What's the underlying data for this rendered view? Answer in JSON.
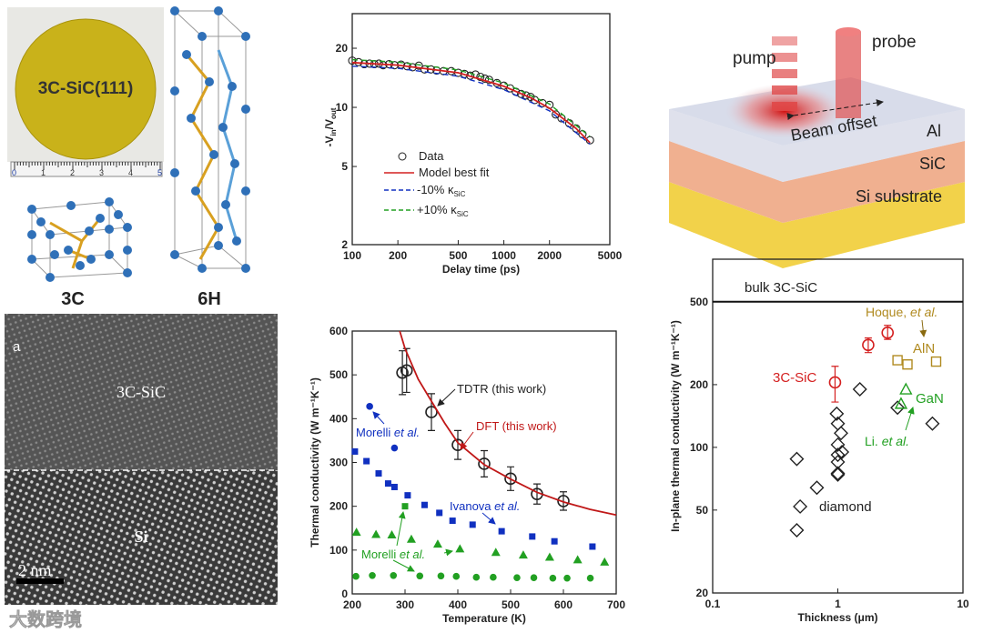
{
  "panel_a": {
    "wafer_label": "3C-SiC(111)",
    "ruler_ticks": [
      "0",
      "1",
      "2",
      "3",
      "4",
      "5"
    ],
    "structure_3c_label": "3C",
    "structure_6h_label": "6H"
  },
  "panel_tem": {
    "panel_letter": "a",
    "top_layer_label": "3C-SiC",
    "bottom_layer_label": "Si",
    "scale_bar_label": "2 nm"
  },
  "schematic": {
    "pump_label": "pump",
    "probe_label": "probe",
    "beam_offset_label": "Beam offset",
    "layers": [
      "Al",
      "SiC",
      "Si substrate"
    ]
  },
  "watermark": "大数跨境",
  "colors": {
    "red": "#d42020",
    "blue": "#1030c0",
    "green": "#22a022",
    "gold": "#b08a20",
    "black": "#222222"
  },
  "chart_data": [
    {
      "type": "scatter",
      "title": "",
      "xlabel": "Delay time (ps)",
      "ylabel_parts": [
        "-V",
        "in",
        "/V",
        "out"
      ],
      "xscale": "log",
      "yscale": "log",
      "xlim": [
        100,
        5000
      ],
      "ylim": [
        2,
        30
      ],
      "xticks": [
        "100",
        "200",
        "500",
        "1000",
        "2000",
        "5000"
      ],
      "yticks": [
        "2",
        "5",
        "10",
        "20"
      ],
      "legend": {
        "placement": "lower-left",
        "entries": [
          "Data",
          "Model best fit",
          "-10% κ",
          "+10% κ"
        ],
        "subscript": "SiC"
      },
      "series": [
        {
          "name": "Data",
          "style": "open-circle",
          "color": "#222222",
          "points": [
            [
              100,
              17.3
            ],
            [
              110,
              17
            ],
            [
              120,
              16.6
            ],
            [
              130,
              16.7
            ],
            [
              140,
              16.6
            ],
            [
              150,
              16.7
            ],
            [
              160,
              16.4
            ],
            [
              175,
              16.6
            ],
            [
              190,
              16.4
            ],
            [
              210,
              16.5
            ],
            [
              230,
              16.2
            ],
            [
              250,
              16
            ],
            [
              275,
              16.3
            ],
            [
              300,
              15.6
            ],
            [
              330,
              15.6
            ],
            [
              360,
              15.4
            ],
            [
              400,
              15.3
            ],
            [
              450,
              15.3
            ],
            [
              500,
              15
            ],
            [
              550,
              14.8
            ],
            [
              600,
              14.5
            ],
            [
              650,
              14.7
            ],
            [
              700,
              14.3
            ],
            [
              750,
              14
            ],
            [
              800,
              13.8
            ],
            [
              900,
              13.3
            ],
            [
              1000,
              12.9
            ],
            [
              1100,
              12.5
            ],
            [
              1200,
              12
            ],
            [
              1300,
              11.7
            ],
            [
              1400,
              11.5
            ],
            [
              1500,
              11.3
            ],
            [
              1600,
              10.9
            ],
            [
              1800,
              10.5
            ],
            [
              2000,
              10.3
            ],
            [
              2200,
              9.2
            ],
            [
              2400,
              8.8
            ],
            [
              2700,
              8.3
            ],
            [
              3000,
              7.8
            ],
            [
              3300,
              7.3
            ],
            [
              3700,
              6.8
            ]
          ]
        },
        {
          "name": "Model best fit",
          "style": "solid",
          "color": "#d42020",
          "points": [
            [
              100,
              16.9
            ],
            [
              200,
              16.4
            ],
            [
              500,
              15
            ],
            [
              1000,
              12.8
            ],
            [
              1500,
              11.2
            ],
            [
              2000,
              9.9
            ],
            [
              3000,
              7.8
            ],
            [
              3700,
              6.6
            ]
          ]
        },
        {
          "name": "-10% κSiC",
          "style": "dashed",
          "color": "#1030c0",
          "points": [
            [
              100,
              16.2
            ],
            [
              200,
              15.8
            ],
            [
              500,
              14.4
            ],
            [
              1000,
              12.3
            ],
            [
              2000,
              9.6
            ],
            [
              3700,
              6.5
            ]
          ]
        },
        {
          "name": "+10% κSiC",
          "style": "dashed",
          "color": "#22a022",
          "points": [
            [
              100,
              17.5
            ],
            [
              200,
              17
            ],
            [
              500,
              15.5
            ],
            [
              1000,
              13.3
            ],
            [
              2000,
              10.4
            ],
            [
              3700,
              7.1
            ]
          ]
        }
      ]
    },
    {
      "type": "scatter",
      "title": "",
      "xlabel": "Temperature (K)",
      "ylabel": "Thermal conductivity (W m⁻¹K⁻¹)",
      "xlim": [
        200,
        700
      ],
      "ylim": [
        0,
        600
      ],
      "xticks": [
        "200",
        "300",
        "400",
        "500",
        "600",
        "700"
      ],
      "yticks": [
        "0",
        "100",
        "200",
        "300",
        "400",
        "500",
        "600"
      ],
      "annotations": [
        "TDTR (this work)",
        "DFT (this work)",
        "Morelli ",
        "et al.",
        "Ivanova ",
        "et al.",
        "Morelli ",
        "et al."
      ],
      "series": [
        {
          "name": "TDTR (this work)",
          "style": "open-circle-errorbar",
          "color": "#222222",
          "points": [
            [
              295,
              505,
              50
            ],
            [
              303,
              510,
              50
            ],
            [
              350,
              415,
              42
            ],
            [
              400,
              340,
              33
            ],
            [
              450,
              297,
              30
            ],
            [
              500,
              263,
              27
            ],
            [
              550,
              228,
              23
            ],
            [
              600,
              212,
              21
            ]
          ]
        },
        {
          "name": "DFT (this work)",
          "style": "solid",
          "color": "#c01818",
          "points": [
            [
              290,
              600
            ],
            [
              300,
              560
            ],
            [
              325,
              490
            ],
            [
              350,
              440
            ],
            [
              375,
              390
            ],
            [
              400,
              345
            ],
            [
              450,
              295
            ],
            [
              500,
              262
            ],
            [
              550,
              232
            ],
            [
              600,
              210
            ],
            [
              650,
              193
            ],
            [
              700,
              180
            ]
          ]
        },
        {
          "name": "Morelli et al. (blue)",
          "style": "filled-circle",
          "color": "#1030c0",
          "points": [
            [
              233,
              428
            ],
            [
              280,
              333
            ]
          ]
        },
        {
          "name": "Ivanova et al.",
          "style": "filled-square",
          "color": "#1030c0",
          "points": [
            [
              205,
              325
            ],
            [
              227,
              303
            ],
            [
              250,
              275
            ],
            [
              268,
              252
            ],
            [
              280,
              244
            ],
            [
              305,
              225
            ],
            [
              337,
              203
            ],
            [
              365,
              185
            ],
            [
              390,
              167
            ],
            [
              428,
              158
            ],
            [
              483,
              143
            ],
            [
              541,
              131
            ],
            [
              583,
              120
            ],
            [
              655,
              108
            ]
          ]
        },
        {
          "name": "Morelli et al. (green square)",
          "style": "filled-square",
          "color": "#22a022",
          "points": [
            [
              300,
              200
            ]
          ]
        },
        {
          "name": "Morelli et al. (green triangle)",
          "style": "filled-triangle",
          "color": "#22a022",
          "points": [
            [
              208,
              141
            ],
            [
              245,
              136
            ],
            [
              275,
              135
            ],
            [
              312,
              125
            ],
            [
              362,
              114
            ],
            [
              404,
              103
            ],
            [
              472,
              95
            ],
            [
              524,
              89
            ],
            [
              574,
              84
            ],
            [
              627,
              78
            ],
            [
              678,
              73
            ]
          ]
        },
        {
          "name": "Morelli et al. (green circle)",
          "style": "filled-circle",
          "color": "#22a022",
          "points": [
            [
              207,
              40
            ],
            [
              238,
              42
            ],
            [
              278,
              42
            ],
            [
              328,
              41
            ],
            [
              368,
              41
            ],
            [
              397,
              40
            ],
            [
              435,
              38
            ],
            [
              467,
              38
            ],
            [
              512,
              37
            ],
            [
              544,
              37
            ],
            [
              580,
              36
            ],
            [
              607,
              36
            ],
            [
              651,
              36
            ]
          ]
        }
      ]
    },
    {
      "type": "scatter",
      "title": "",
      "xlabel": "Thickness (μm)",
      "ylabel": "In-plane thermal conductivity (W m⁻¹K⁻¹)",
      "xscale": "log",
      "yscale": "log",
      "xlim": [
        0.1,
        10
      ],
      "ylim": [
        20,
        800
      ],
      "xticks": [
        "0.1",
        "1",
        "10"
      ],
      "yticks": [
        "20",
        "50",
        "100",
        "200",
        "500"
      ],
      "reference_line": {
        "label": "bulk 3C-SiC",
        "value": 500
      },
      "annotations": [
        "3C-SiC",
        "Hoque, ",
        "et al.",
        "AlN",
        "GaN",
        "Li. ",
        "et al.",
        "diamond"
      ],
      "series": [
        {
          "name": "3C-SiC",
          "style": "open-circle-errorbar",
          "color": "#d42020",
          "points": [
            [
              0.95,
              205,
              165,
              245
            ],
            [
              1.75,
              310,
              285,
              335
            ],
            [
              2.5,
              355,
              330,
              385
            ]
          ]
        },
        {
          "name": "diamond",
          "style": "open-diamond",
          "color": "#222222",
          "points": [
            [
              0.47,
              88
            ],
            [
              0.47,
              40
            ],
            [
              0.5,
              52
            ],
            [
              0.68,
              64
            ],
            [
              0.98,
              145
            ],
            [
              1.0,
              130
            ],
            [
              1.06,
              117
            ],
            [
              1.0,
              103
            ],
            [
              1.0,
              92
            ],
            [
              1.08,
              95
            ],
            [
              1.0,
              85
            ],
            [
              1.0,
              75
            ],
            [
              1.0,
              74
            ],
            [
              1.5,
              190
            ],
            [
              3.0,
              155
            ],
            [
              5.7,
              130
            ]
          ]
        },
        {
          "name": "AlN (Hoque et al.)",
          "style": "open-square",
          "color": "#b08a20",
          "points": [
            [
              3.0,
              262
            ],
            [
              3.6,
              250
            ],
            [
              6.1,
              258
            ]
          ]
        },
        {
          "name": "GaN (Li et al.)",
          "style": "open-triangle",
          "color": "#22a022",
          "points": [
            [
              3.5,
              190
            ],
            [
              3.2,
              162
            ]
          ]
        }
      ]
    }
  ]
}
